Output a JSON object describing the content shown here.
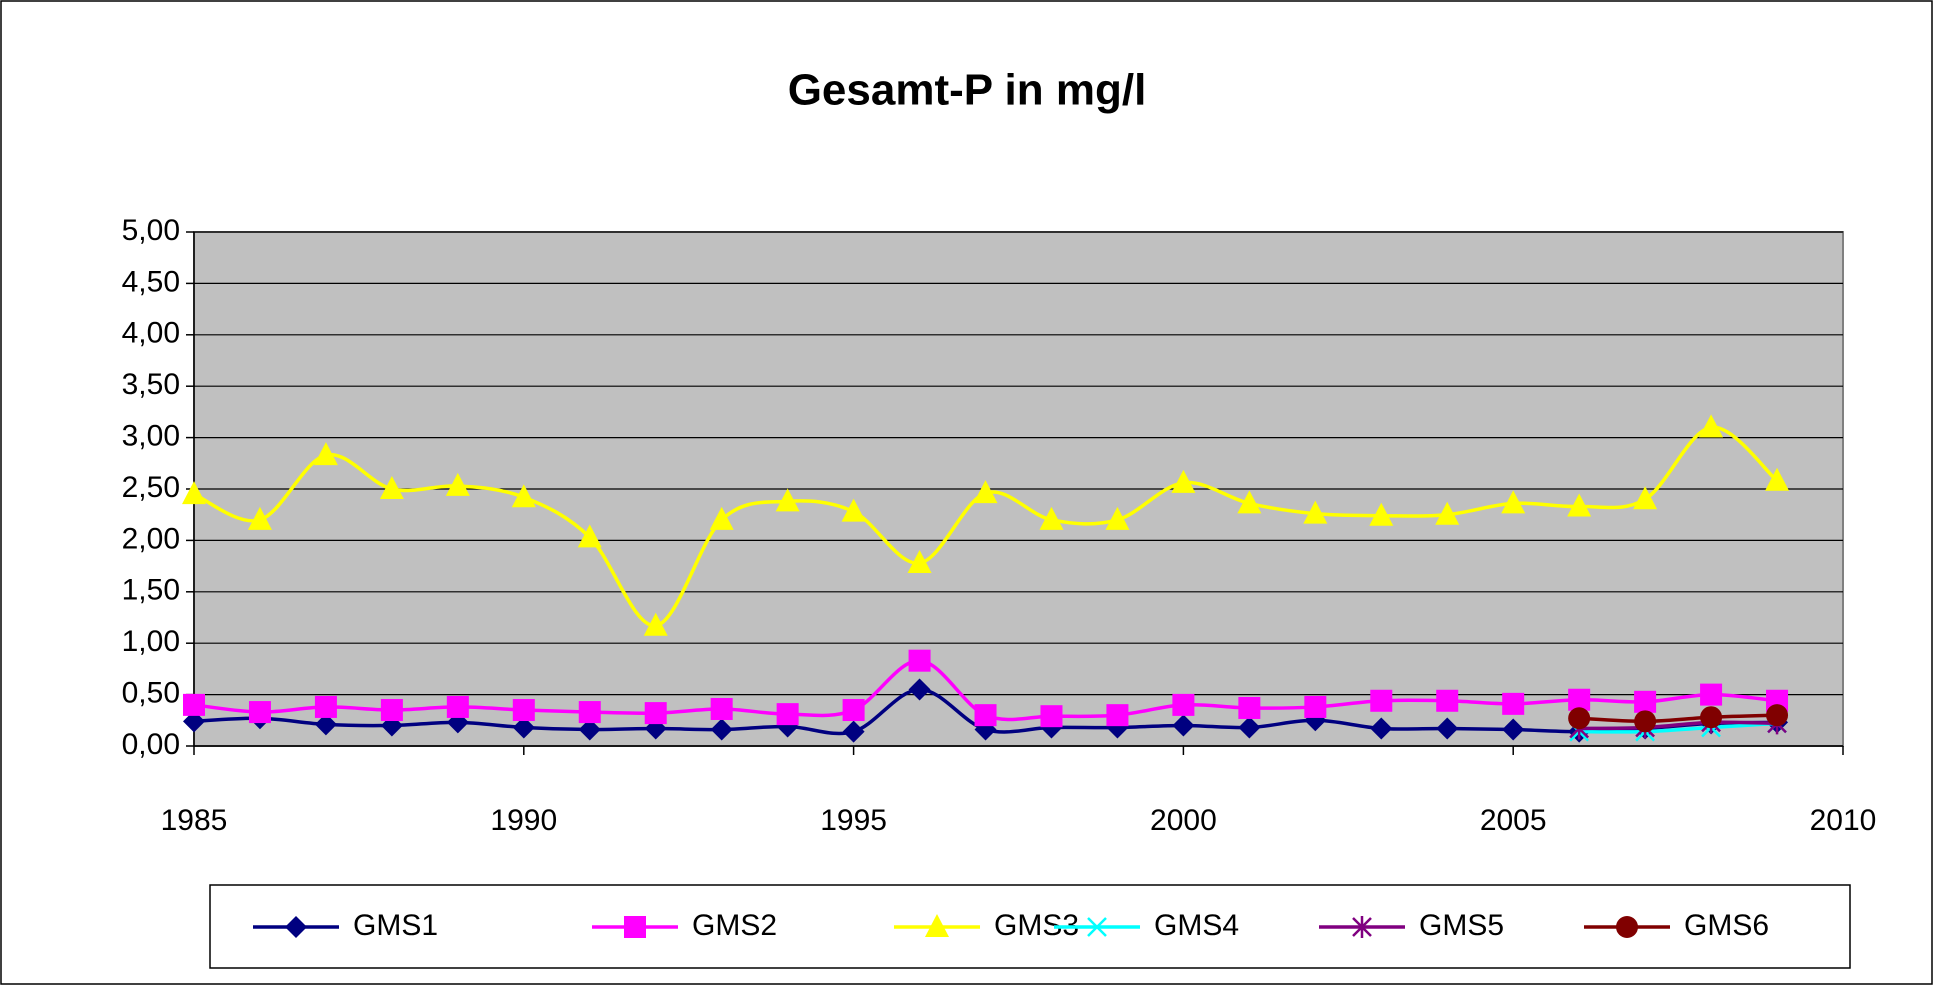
{
  "chart_data": {
    "type": "line",
    "title": "Gesamt-P in mg/l",
    "x": [
      1985,
      1986,
      1987,
      1988,
      1989,
      1990,
      1991,
      1992,
      1993,
      1994,
      1995,
      1996,
      1997,
      1998,
      1999,
      2000,
      2001,
      2002,
      2003,
      2004,
      2005,
      2006,
      2007,
      2008,
      2009
    ],
    "series": [
      {
        "name": "GMS1",
        "color": "#000080",
        "marker": "diamond",
        "values": [
          0.24,
          0.27,
          0.21,
          0.2,
          0.23,
          0.18,
          0.16,
          0.17,
          0.16,
          0.19,
          0.14,
          0.55,
          0.16,
          0.18,
          0.18,
          0.2,
          0.18,
          0.25,
          0.17,
          0.17,
          0.16,
          0.14,
          0.17,
          0.22,
          0.23
        ]
      },
      {
        "name": "GMS2",
        "color": "#ff00ff",
        "marker": "square",
        "values": [
          0.4,
          0.33,
          0.38,
          0.35,
          0.38,
          0.35,
          0.33,
          0.32,
          0.36,
          0.31,
          0.35,
          0.83,
          0.3,
          0.29,
          0.3,
          0.4,
          0.37,
          0.38,
          0.44,
          0.44,
          0.41,
          0.45,
          0.43,
          0.5,
          0.44
        ]
      },
      {
        "name": "GMS3",
        "color": "#ffff00",
        "marker": "triangle",
        "values": [
          2.45,
          2.2,
          2.83,
          2.5,
          2.53,
          2.42,
          2.03,
          1.17,
          2.2,
          2.38,
          2.28,
          1.78,
          2.46,
          2.2,
          2.2,
          2.56,
          2.36,
          2.26,
          2.24,
          2.25,
          2.36,
          2.33,
          2.4,
          3.1,
          2.58
        ]
      },
      {
        "name": "GMS4",
        "color": "#00ffff",
        "marker": "x",
        "values": [
          null,
          null,
          null,
          null,
          null,
          null,
          null,
          null,
          null,
          null,
          null,
          null,
          null,
          null,
          null,
          null,
          null,
          null,
          null,
          null,
          null,
          0.14,
          0.14,
          0.18,
          0.22
        ]
      },
      {
        "name": "GMS5",
        "color": "#800080",
        "marker": "star",
        "values": [
          null,
          null,
          null,
          null,
          null,
          null,
          null,
          null,
          null,
          null,
          null,
          null,
          null,
          null,
          null,
          null,
          null,
          null,
          null,
          null,
          null,
          0.17,
          0.18,
          0.23,
          0.22
        ]
      },
      {
        "name": "GMS6",
        "color": "#800000",
        "marker": "circle",
        "values": [
          null,
          null,
          null,
          null,
          null,
          null,
          null,
          null,
          null,
          null,
          null,
          null,
          null,
          null,
          null,
          null,
          null,
          null,
          null,
          null,
          null,
          0.27,
          0.24,
          0.28,
          0.3
        ]
      }
    ],
    "xlim": [
      1985,
      2010
    ],
    "xticks": [
      1985,
      1990,
      1995,
      2000,
      2005,
      2010
    ],
    "ylim": [
      0,
      5
    ],
    "yticks": [
      {
        "value": 0,
        "label": "0,00"
      },
      {
        "value": 0.5,
        "label": "0,50"
      },
      {
        "value": 1,
        "label": "1,00"
      },
      {
        "value": 1.5,
        "label": "1,50"
      },
      {
        "value": 2,
        "label": "2,00"
      },
      {
        "value": 2.5,
        "label": "2,50"
      },
      {
        "value": 3,
        "label": "3,00"
      },
      {
        "value": 3.5,
        "label": "3,50"
      },
      {
        "value": 4,
        "label": "4,00"
      },
      {
        "value": 4.5,
        "label": "4,50"
      },
      {
        "value": 5,
        "label": "5,00"
      }
    ],
    "grid": true,
    "plot_background": "#c0c0c0",
    "legend": "bottom"
  }
}
